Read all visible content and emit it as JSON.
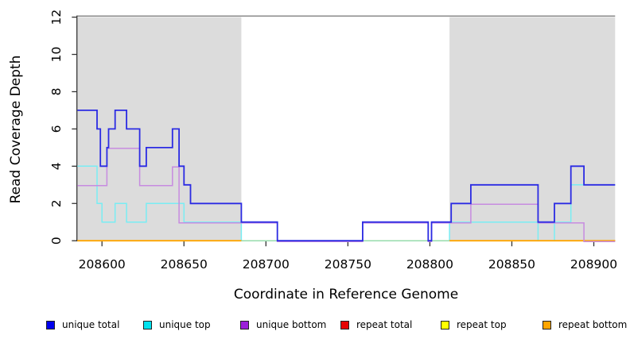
{
  "chart_data": {
    "type": "line",
    "subtype": "step-coverage",
    "title": "",
    "xlabel": "Coordinate in Reference Genome",
    "ylabel": "Read Coverage Depth",
    "xlim": [
      208585,
      208913
    ],
    "ylim": [
      0,
      12
    ],
    "xticks": [
      208600,
      208650,
      208700,
      208750,
      208800,
      208850,
      208900
    ],
    "yticks": [
      0,
      2,
      4,
      6,
      8,
      10,
      12
    ],
    "grid": false,
    "legend_position": "bottom",
    "repeat_regions": [
      [
        208585,
        208685
      ],
      [
        208812,
        208913
      ]
    ],
    "colors": {
      "shade": "#dcdcdc",
      "plot_border_top": "#808080",
      "axis": "#333333",
      "background": "#ffffff"
    },
    "series": [
      {
        "name": "unique total",
        "legend_color": "#0000EE",
        "line_color": "#2B2BE3",
        "width": 1.8,
        "pieces": [
          {
            "steps": [
              [
                208585,
                7
              ],
              [
                208597,
                6
              ],
              [
                208599,
                4
              ],
              [
                208603,
                5
              ],
              [
                208604,
                6
              ],
              [
                208608,
                7
              ],
              [
                208615,
                6
              ],
              [
                208623,
                4
              ],
              [
                208627,
                5
              ],
              [
                208643,
                6
              ],
              [
                208647,
                4
              ],
              [
                208650,
                3
              ],
              [
                208654,
                2
              ],
              [
                208685,
                1
              ],
              [
                208707,
                0
              ],
              [
                208759,
                1
              ],
              [
                208799,
                0
              ],
              [
                208801,
                1
              ],
              [
                208813,
                2
              ],
              [
                208825,
                3
              ],
              [
                208866,
                1
              ],
              [
                208876,
                2
              ],
              [
                208886,
                4
              ],
              [
                208894,
                3
              ]
            ],
            "end": 208913
          }
        ]
      },
      {
        "name": "unique top",
        "legend_color": "#00E2EE",
        "line_color": "#79EDF3",
        "width": 1.5,
        "pieces": [
          {
            "steps": [
              [
                208585,
                4
              ],
              [
                208597,
                2
              ],
              [
                208600,
                1
              ],
              [
                208608,
                2
              ],
              [
                208615,
                1
              ],
              [
                208627,
                2
              ],
              [
                208650,
                1
              ],
              [
                208685,
                0
              ],
              [
                208812,
                1
              ],
              [
                208866,
                0
              ],
              [
                208876,
                1
              ],
              [
                208886,
                3
              ]
            ],
            "end": 208913
          }
        ]
      },
      {
        "name": "unique bottom",
        "legend_color": "#9B1FD9",
        "line_color": "#C78BE0",
        "width": 1.5,
        "pieces": [
          {
            "steps": [
              [
                208585,
                3
              ],
              [
                208603,
                5
              ],
              [
                208623,
                3
              ],
              [
                208643,
                4
              ],
              [
                208647,
                1
              ],
              [
                208707,
                0
              ],
              [
                208759,
                1
              ],
              [
                208799,
                0
              ],
              [
                208801,
                1
              ],
              [
                208825,
                2
              ],
              [
                208866,
                1
              ],
              [
                208894,
                0
              ]
            ],
            "end": 208913
          }
        ]
      },
      {
        "name": "repeat total",
        "legend_color": "#E60000",
        "line_color": "#E60000",
        "width": 1.5,
        "pieces": [
          {
            "steps": [
              [
                208585,
                0
              ]
            ],
            "end": 208685
          },
          {
            "steps": [
              [
                208812,
                0
              ]
            ],
            "end": 208913
          }
        ]
      },
      {
        "name": "repeat top",
        "legend_color": "#FFFF00",
        "line_color": "#FFFF00",
        "width": 1.5,
        "pieces": [
          {
            "steps": [
              [
                208585,
                0
              ]
            ],
            "end": 208685
          },
          {
            "steps": [
              [
                208812,
                0
              ]
            ],
            "end": 208913
          }
        ]
      },
      {
        "name": "repeat bottom",
        "legend_color": "#FFA500",
        "line_color": "#FFA500",
        "width": 1.8,
        "pieces": [
          {
            "steps": [
              [
                208585,
                0
              ]
            ],
            "end": 208685
          },
          {
            "steps": [
              [
                208812,
                0
              ]
            ],
            "end": 208913
          }
        ]
      }
    ],
    "baseline_overlap": {
      "name": "unique-repeat overlap baseline",
      "line_color": "#98D9A5",
      "width": 1.4,
      "pieces": [
        {
          "steps": [
            [
              208685,
              0
            ]
          ],
          "end": 208812
        }
      ]
    }
  }
}
